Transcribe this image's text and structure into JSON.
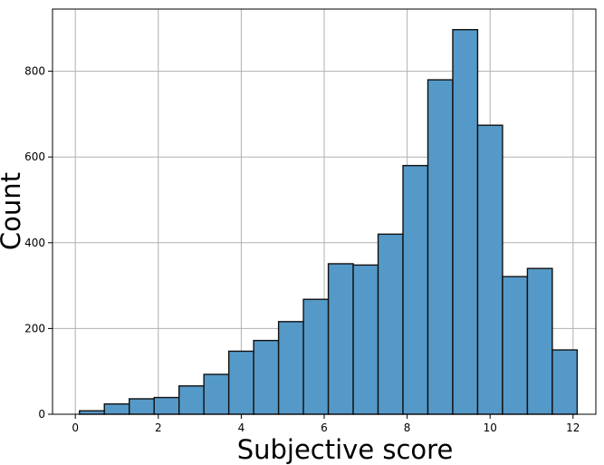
{
  "chart_data": {
    "type": "bar",
    "title": "",
    "xlabel": "Subjective score",
    "ylabel": "Count",
    "xlim": [
      -0.55,
      12.55
    ],
    "ylim": [
      0,
      945
    ],
    "x_ticks": [
      0,
      2,
      4,
      6,
      8,
      10,
      12
    ],
    "y_ticks": [
      0,
      200,
      400,
      600,
      800
    ],
    "grid": true,
    "bar_color": "#5599c8",
    "bins": [
      {
        "x0": 0.1,
        "x1": 0.7,
        "value": 8
      },
      {
        "x0": 0.7,
        "x1": 1.3,
        "value": 24
      },
      {
        "x0": 1.3,
        "x1": 1.9,
        "value": 36
      },
      {
        "x0": 1.9,
        "x1": 2.5,
        "value": 39
      },
      {
        "x0": 2.5,
        "x1": 3.1,
        "value": 66
      },
      {
        "x0": 3.1,
        "x1": 3.7,
        "value": 93
      },
      {
        "x0": 3.7,
        "x1": 4.3,
        "value": 147
      },
      {
        "x0": 4.3,
        "x1": 4.9,
        "value": 172
      },
      {
        "x0": 4.9,
        "x1": 5.5,
        "value": 216
      },
      {
        "x0": 5.5,
        "x1": 6.1,
        "value": 268
      },
      {
        "x0": 6.1,
        "x1": 6.7,
        "value": 351
      },
      {
        "x0": 6.7,
        "x1": 7.3,
        "value": 348
      },
      {
        "x0": 7.3,
        "x1": 7.9,
        "value": 420
      },
      {
        "x0": 7.9,
        "x1": 8.5,
        "value": 580
      },
      {
        "x0": 8.5,
        "x1": 9.1,
        "value": 780
      },
      {
        "x0": 9.1,
        "x1": 9.7,
        "value": 897
      },
      {
        "x0": 9.7,
        "x1": 10.3,
        "value": 674
      },
      {
        "x0": 10.3,
        "x1": 10.9,
        "value": 321
      },
      {
        "x0": 10.9,
        "x1": 11.5,
        "value": 340
      },
      {
        "x0": 11.5,
        "x1": 12.1,
        "value": 150
      }
    ]
  }
}
